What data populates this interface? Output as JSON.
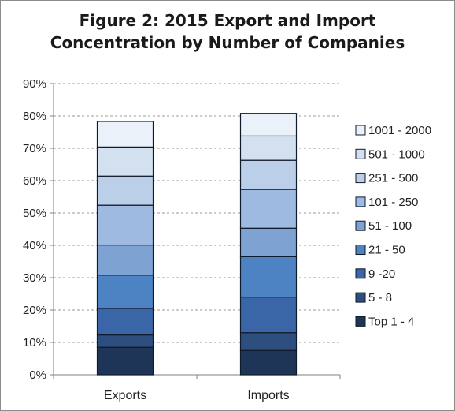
{
  "chart_data": {
    "type": "bar",
    "stacked": true,
    "title_lines": [
      "Figure 2: 2015 Export and Import",
      "Concentration by Number of Companies"
    ],
    "xlabel": "",
    "ylabel": "",
    "categories": [
      "Exports",
      "Imports"
    ],
    "ylim": [
      0,
      90
    ],
    "y_ticks": [
      "0%",
      "10%",
      "20%",
      "30%",
      "40%",
      "50%",
      "60%",
      "70%",
      "80%",
      "90%"
    ],
    "grid": "horizontal dashed",
    "legend_position": "right",
    "series": [
      {
        "name": "Top 1 - 4",
        "color": "#1f3557",
        "values": [
          8.5,
          7.5
        ]
      },
      {
        "name": "5 - 8",
        "color": "#2e4e80",
        "values": [
          3.8,
          5.5
        ]
      },
      {
        "name": "9 -20",
        "color": "#3a66a7",
        "values": [
          8.2,
          11.0
        ]
      },
      {
        "name": "21 - 50",
        "color": "#4d82c3",
        "values": [
          10.3,
          12.5
        ]
      },
      {
        "name": "51 - 100",
        "color": "#7ea3d2",
        "values": [
          9.3,
          8.8
        ]
      },
      {
        "name": "101 - 250",
        "color": "#9fbae0",
        "values": [
          12.3,
          12.0
        ]
      },
      {
        "name": "251 - 500",
        "color": "#bccfe8",
        "values": [
          9.0,
          9.0
        ]
      },
      {
        "name": "501 - 1000",
        "color": "#d3e0f0",
        "values": [
          9.0,
          7.5
        ]
      },
      {
        "name": "1001 - 2000",
        "color": "#ebf1f8",
        "values": [
          7.9,
          7.0
        ]
      }
    ]
  }
}
